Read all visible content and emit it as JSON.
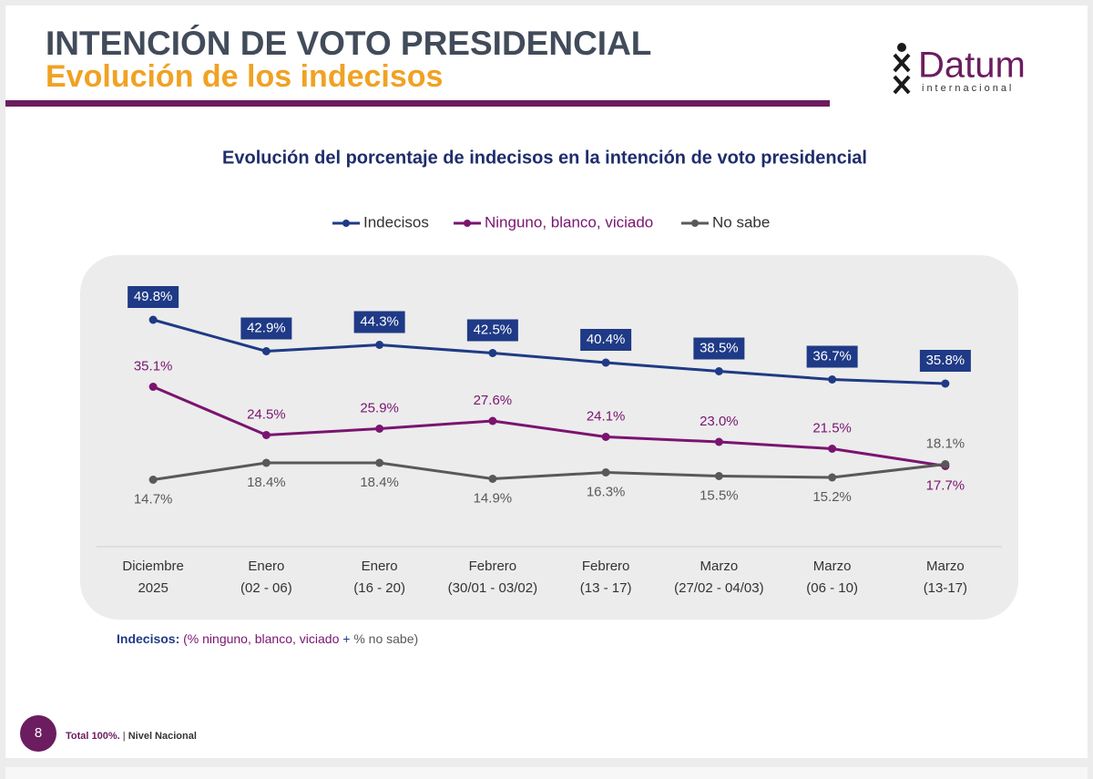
{
  "header": {
    "title": "INTENCIÓN DE VOTO PRESIDENCIAL",
    "subtitle": "Evolución de los indecisos",
    "logo": "Datum",
    "logo_sub": "internacional"
  },
  "chart_data": {
    "type": "line",
    "title": "Evolución del porcentaje de indecisos en la intención de voto presidencial",
    "categories": [
      [
        "Diciembre",
        "2025"
      ],
      [
        "Enero",
        "(02 - 06)"
      ],
      [
        "Enero",
        "(16 - 20)"
      ],
      [
        "Febrero",
        "(30/01 - 03/02)"
      ],
      [
        "Febrero",
        "(13 - 17)"
      ],
      [
        "Marzo",
        "(27/02 - 04/03)"
      ],
      [
        "Marzo",
        "(06 - 10)"
      ],
      [
        "Marzo",
        "(13-17)"
      ]
    ],
    "series": [
      {
        "name": "Indecisos",
        "color": "#1f3a86",
        "values": [
          49.8,
          42.9,
          44.3,
          42.5,
          40.4,
          38.5,
          36.7,
          35.8
        ],
        "value_labels": [
          "49.8%",
          "42.9%",
          "44.3%",
          "42.5%",
          "40.4%",
          "38.5%",
          "36.7%",
          "35.8%"
        ]
      },
      {
        "name": "Ninguno, blanco, viciado",
        "color": "#7a1470",
        "values": [
          35.1,
          24.5,
          25.9,
          27.6,
          24.1,
          23.0,
          21.5,
          17.7
        ],
        "value_labels": [
          "35.1%",
          "24.5%",
          "25.9%",
          "27.6%",
          "24.1%",
          "23.0%",
          "21.5%",
          "17.7%"
        ]
      },
      {
        "name": "No sabe",
        "color": "#595959",
        "values": [
          14.7,
          18.4,
          18.4,
          14.9,
          16.3,
          15.5,
          15.2,
          18.1
        ],
        "value_labels": [
          "14.7%",
          "18.4%",
          "18.4%",
          "14.9%",
          "16.3%",
          "15.5%",
          "15.2%",
          "18.1%"
        ]
      }
    ],
    "ylim": [
      0,
      60
    ],
    "legend": "top"
  },
  "footnote": {
    "label": "Indecisos:",
    "part1": "(% ninguno, blanco, viciado",
    "plus": "+",
    "part2": "% no sabe)"
  },
  "footer": {
    "page": "8",
    "total": "Total 100%.",
    "separator": "|",
    "scope": "Nivel Nacional"
  }
}
